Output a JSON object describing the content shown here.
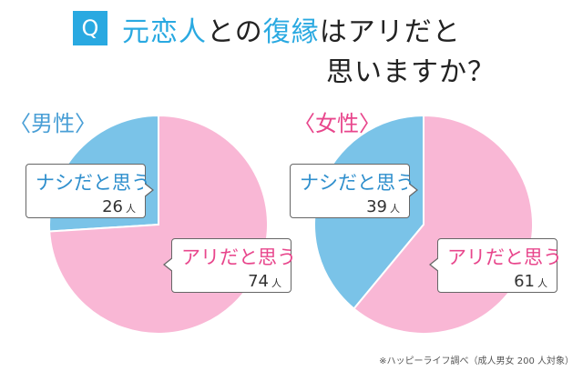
{
  "title": {
    "badge": "Q",
    "line1_accent1": "元恋人",
    "line1_mid": "との",
    "line1_accent2": "復縁",
    "line1_end": "はアリだと",
    "line2": "思いますか？"
  },
  "colors": {
    "pink": "#f9b7d5",
    "blue": "#7ac3e8",
    "accent": "#29a9e1"
  },
  "chart_data": [
    {
      "type": "pie",
      "group": "〈男性〉",
      "categories": [
        "ナシだと思う",
        "アリだと思う"
      ],
      "values": [
        26,
        74
      ],
      "unit": "人"
    },
    {
      "type": "pie",
      "group": "〈女性〉",
      "categories": [
        "ナシだと思う",
        "アリだと思う"
      ],
      "values": [
        39,
        61
      ],
      "unit": "人"
    }
  ],
  "footnote": "※ハッピーライフ調べ（成人男女 200 人対象）"
}
